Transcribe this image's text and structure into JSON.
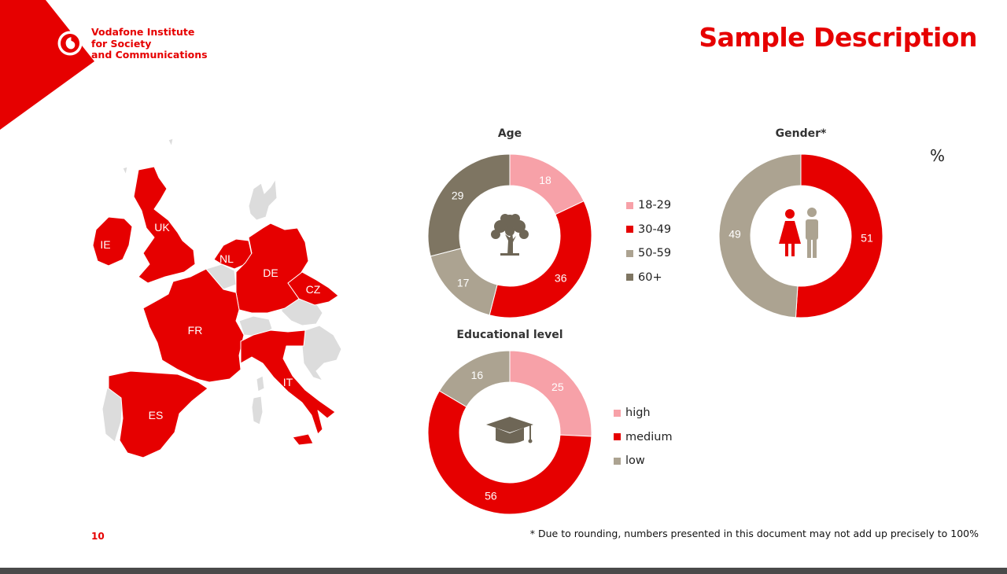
{
  "header": {
    "logo_lines": [
      "Vodafone Institute",
      "for Society",
      "and Communications"
    ],
    "title": "Sample Description"
  },
  "unit": "%",
  "map": {
    "labels": [
      "IE",
      "UK",
      "NL",
      "DE",
      "CZ",
      "FR",
      "ES",
      "IT"
    ]
  },
  "colors": {
    "brand_red": "#e60000",
    "pink": "#f7a1a8",
    "beige": "#aca391",
    "dark_brown": "#7e7562",
    "map_grey": "#dcdcdc"
  },
  "chart_data": [
    {
      "type": "pie",
      "title": "Age",
      "categories": [
        "18-29",
        "30-49",
        "50-59",
        "60+"
      ],
      "values": [
        18,
        36,
        17,
        29
      ],
      "colors": [
        "#f7a1a8",
        "#e60000",
        "#aca391",
        "#7e7562"
      ],
      "legend": "right",
      "center_icon": "tree-icon"
    },
    {
      "type": "pie",
      "title": "Gender*",
      "categories": [
        "female",
        "male"
      ],
      "values": [
        51,
        49
      ],
      "colors": [
        "#e60000",
        "#aca391"
      ],
      "center_icon": "people-icon"
    },
    {
      "type": "pie",
      "title": "Educational level",
      "categories": [
        "high",
        "medium",
        "low"
      ],
      "values": [
        25,
        56,
        16
      ],
      "colors": [
        "#f7a1a8",
        "#e60000",
        "#aca391"
      ],
      "legend": "right",
      "center_icon": "graduation-cap-icon"
    }
  ],
  "footer": {
    "page_number": "10",
    "footnote": "* Due to rounding, numbers presented in this document may not add up precisely to 100%"
  }
}
